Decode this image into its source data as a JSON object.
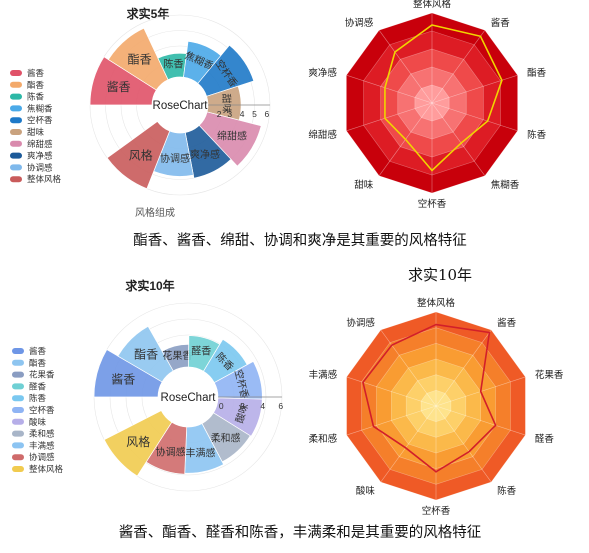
{
  "panels": [
    {
      "rose": {
        "title": "求实5年",
        "center_label": "RoseChart",
        "subtitle": "风格组成",
        "ticks": [
          "2",
          "3",
          "4",
          "5",
          "6"
        ],
        "legend": [
          "酱香",
          "酯香",
          "陈香",
          "焦糊香",
          "空杯香",
          "甜味",
          "绵甜感",
          "爽净感",
          "协调感",
          "整体风格"
        ],
        "colors": [
          "#e05268",
          "#f3a96a",
          "#2cb8a6",
          "#4aa9e8",
          "#1e79c8",
          "#c9a27e",
          "#d98aad",
          "#1c5a99",
          "#7fb9ec",
          "#c95b5b"
        ],
        "labels": [
          "酱香",
          "酯香",
          "陈香",
          "焦糊香",
          "空杯香",
          "甜味",
          "绵甜感",
          "爽净感",
          "协调感",
          "风格"
        ]
      },
      "radar": {
        "axes": [
          "整体风格",
          "酱香",
          "酯香",
          "陈香",
          "焦糊香",
          "空杯香",
          "甜味",
          "绵甜感",
          "爽净感",
          "协调感"
        ],
        "ring_colors": [
          "#c8000b",
          "#dd1c24",
          "#ef4a4a",
          "#f77272",
          "#ff9c9c"
        ],
        "line_color": "#f1d400"
      },
      "caption": "酯香、酱香、绵甜、协调和爽净是其重要的风格特征"
    },
    {
      "title_right": "求实10年",
      "rose": {
        "title": "求实10年",
        "center_label": "RoseChart",
        "ticks": [
          "0",
          "2",
          "4",
          "6"
        ],
        "legend": [
          "酱香",
          "酯香",
          "花果香",
          "醛香",
          "陈香",
          "空杯香",
          "酸味",
          "柔和感",
          "丰满感",
          "协调感",
          "整体风格"
        ],
        "colors": [
          "#6e96e6",
          "#8ec5f0",
          "#8a9dc2",
          "#6fd0d4",
          "#7ac8f0",
          "#8fb4f4",
          "#b6aee8",
          "#a8b5c8",
          "#8cc4f2",
          "#cf6b6b",
          "#f1cb4f"
        ],
        "labels": [
          "酱香",
          "酯香",
          "花果香",
          "醛香",
          "陈香",
          "空杯香",
          "酸味",
          "柔和感",
          "丰满感",
          "协调感",
          "风格"
        ]
      },
      "radar": {
        "axes": [
          "整体风格",
          "酱香",
          "花果香",
          "醛香",
          "陈香",
          "空杯香",
          "酸味",
          "柔和感",
          "丰满感",
          "协调感"
        ],
        "ring_colors": [
          "#ef5a26",
          "#f57f2a",
          "#f99c32",
          "#fbb94a",
          "#fdd069",
          "#fee38c"
        ],
        "line_color": "#d21f2a"
      },
      "caption": "酱香、酯香、醛香和陈香，丰满柔和是其重要的风格特征"
    }
  ],
  "chart_data": [
    {
      "type": "rose",
      "title": "求实5年",
      "categories": [
        "酱香",
        "酯香",
        "陈香",
        "焦糊香",
        "空杯香",
        "甜味",
        "绵甜感",
        "爽净感",
        "协调感",
        "整体风格"
      ],
      "values": [
        6,
        5.5,
        2.3,
        3.5,
        4.8,
        3.2,
        5.4,
        4.5,
        4.2,
        6
      ],
      "rmax": 6
    },
    {
      "type": "radar",
      "title": "求实5年",
      "categories": [
        "整体风格",
        "酱香",
        "酯香",
        "陈香",
        "焦糊香",
        "空杯香",
        "甜味",
        "绵甜感",
        "爽净感",
        "协调感"
      ],
      "values": [
        5.2,
        5.5,
        4.9,
        3.9,
        3.3,
        4.5,
        3.0,
        3.3,
        3.3,
        4.2
      ],
      "rmax": 6
    },
    {
      "type": "rose",
      "title": "求实10年",
      "categories": [
        "酱香",
        "酯香",
        "花果香",
        "醛香",
        "陈香",
        "空杯香",
        "酸味",
        "柔和感",
        "丰满感",
        "协调感",
        "整体风格"
      ],
      "values": [
        6.5,
        5.2,
        2.3,
        3.2,
        3.8,
        4.5,
        4.5,
        4.4,
        4.7,
        4.8,
        6.5
      ],
      "rmax": 6.5
    },
    {
      "type": "radar",
      "title": "求实10年",
      "categories": [
        "整体风格",
        "酱香",
        "花果香",
        "醛香",
        "陈香",
        "空杯香",
        "酸味",
        "柔和感",
        "丰满感",
        "协调感"
      ],
      "values": [
        5.2,
        5.8,
        3.0,
        4.0,
        3.6,
        4.2,
        3.3,
        4.2,
        4.9,
        4.8
      ],
      "rmax": 6
    }
  ]
}
